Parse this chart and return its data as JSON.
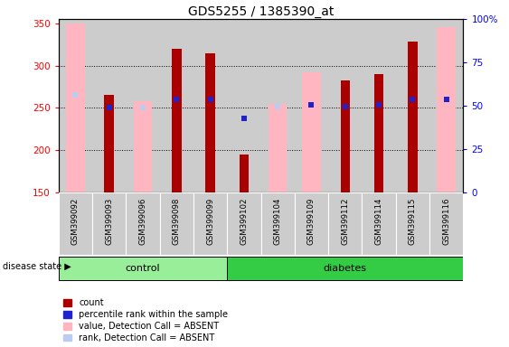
{
  "title": "GDS5255 / 1385390_at",
  "samples": [
    "GSM399092",
    "GSM399093",
    "GSM399096",
    "GSM399098",
    "GSM399099",
    "GSM399102",
    "GSM399104",
    "GSM399109",
    "GSM399112",
    "GSM399114",
    "GSM399115",
    "GSM399116"
  ],
  "count_values": [
    null,
    265,
    null,
    320,
    315,
    195,
    null,
    null,
    282,
    290,
    328,
    null
  ],
  "pink_bar_values": [
    350,
    null,
    258,
    null,
    null,
    null,
    255,
    292,
    null,
    null,
    null,
    345
  ],
  "blue_square_values": [
    null,
    251,
    null,
    260,
    260,
    238,
    null,
    254,
    252,
    254,
    260,
    260
  ],
  "light_blue_rank_values": [
    265,
    null,
    250,
    null,
    260,
    null,
    252,
    null,
    null,
    null,
    null,
    260
  ],
  "ylim": [
    150,
    355
  ],
  "right_ylim": [
    0,
    100
  ],
  "yticks_left": [
    150,
    200,
    250,
    300,
    350
  ],
  "yticks_right": [
    0,
    25,
    50,
    75,
    100
  ],
  "colors": {
    "count_bar": "#AA0000",
    "pink_bar": "#FFB6C1",
    "blue_square": "#2222CC",
    "light_blue": "#BBCCEE",
    "control_bg": "#99EE99",
    "diabetes_bg": "#33CC44",
    "sample_bg": "#CCCCCC",
    "grid_line": "#000000"
  },
  "control_count": 5,
  "diabetes_count": 7,
  "disease_state_label": "disease state",
  "control_label": "control",
  "diabetes_label": "diabetes",
  "legend_labels": [
    "count",
    "percentile rank within the sample",
    "value, Detection Call = ABSENT",
    "rank, Detection Call = ABSENT"
  ],
  "legend_colors": [
    "#AA0000",
    "#2222CC",
    "#FFB6C1",
    "#BBCCEE"
  ]
}
